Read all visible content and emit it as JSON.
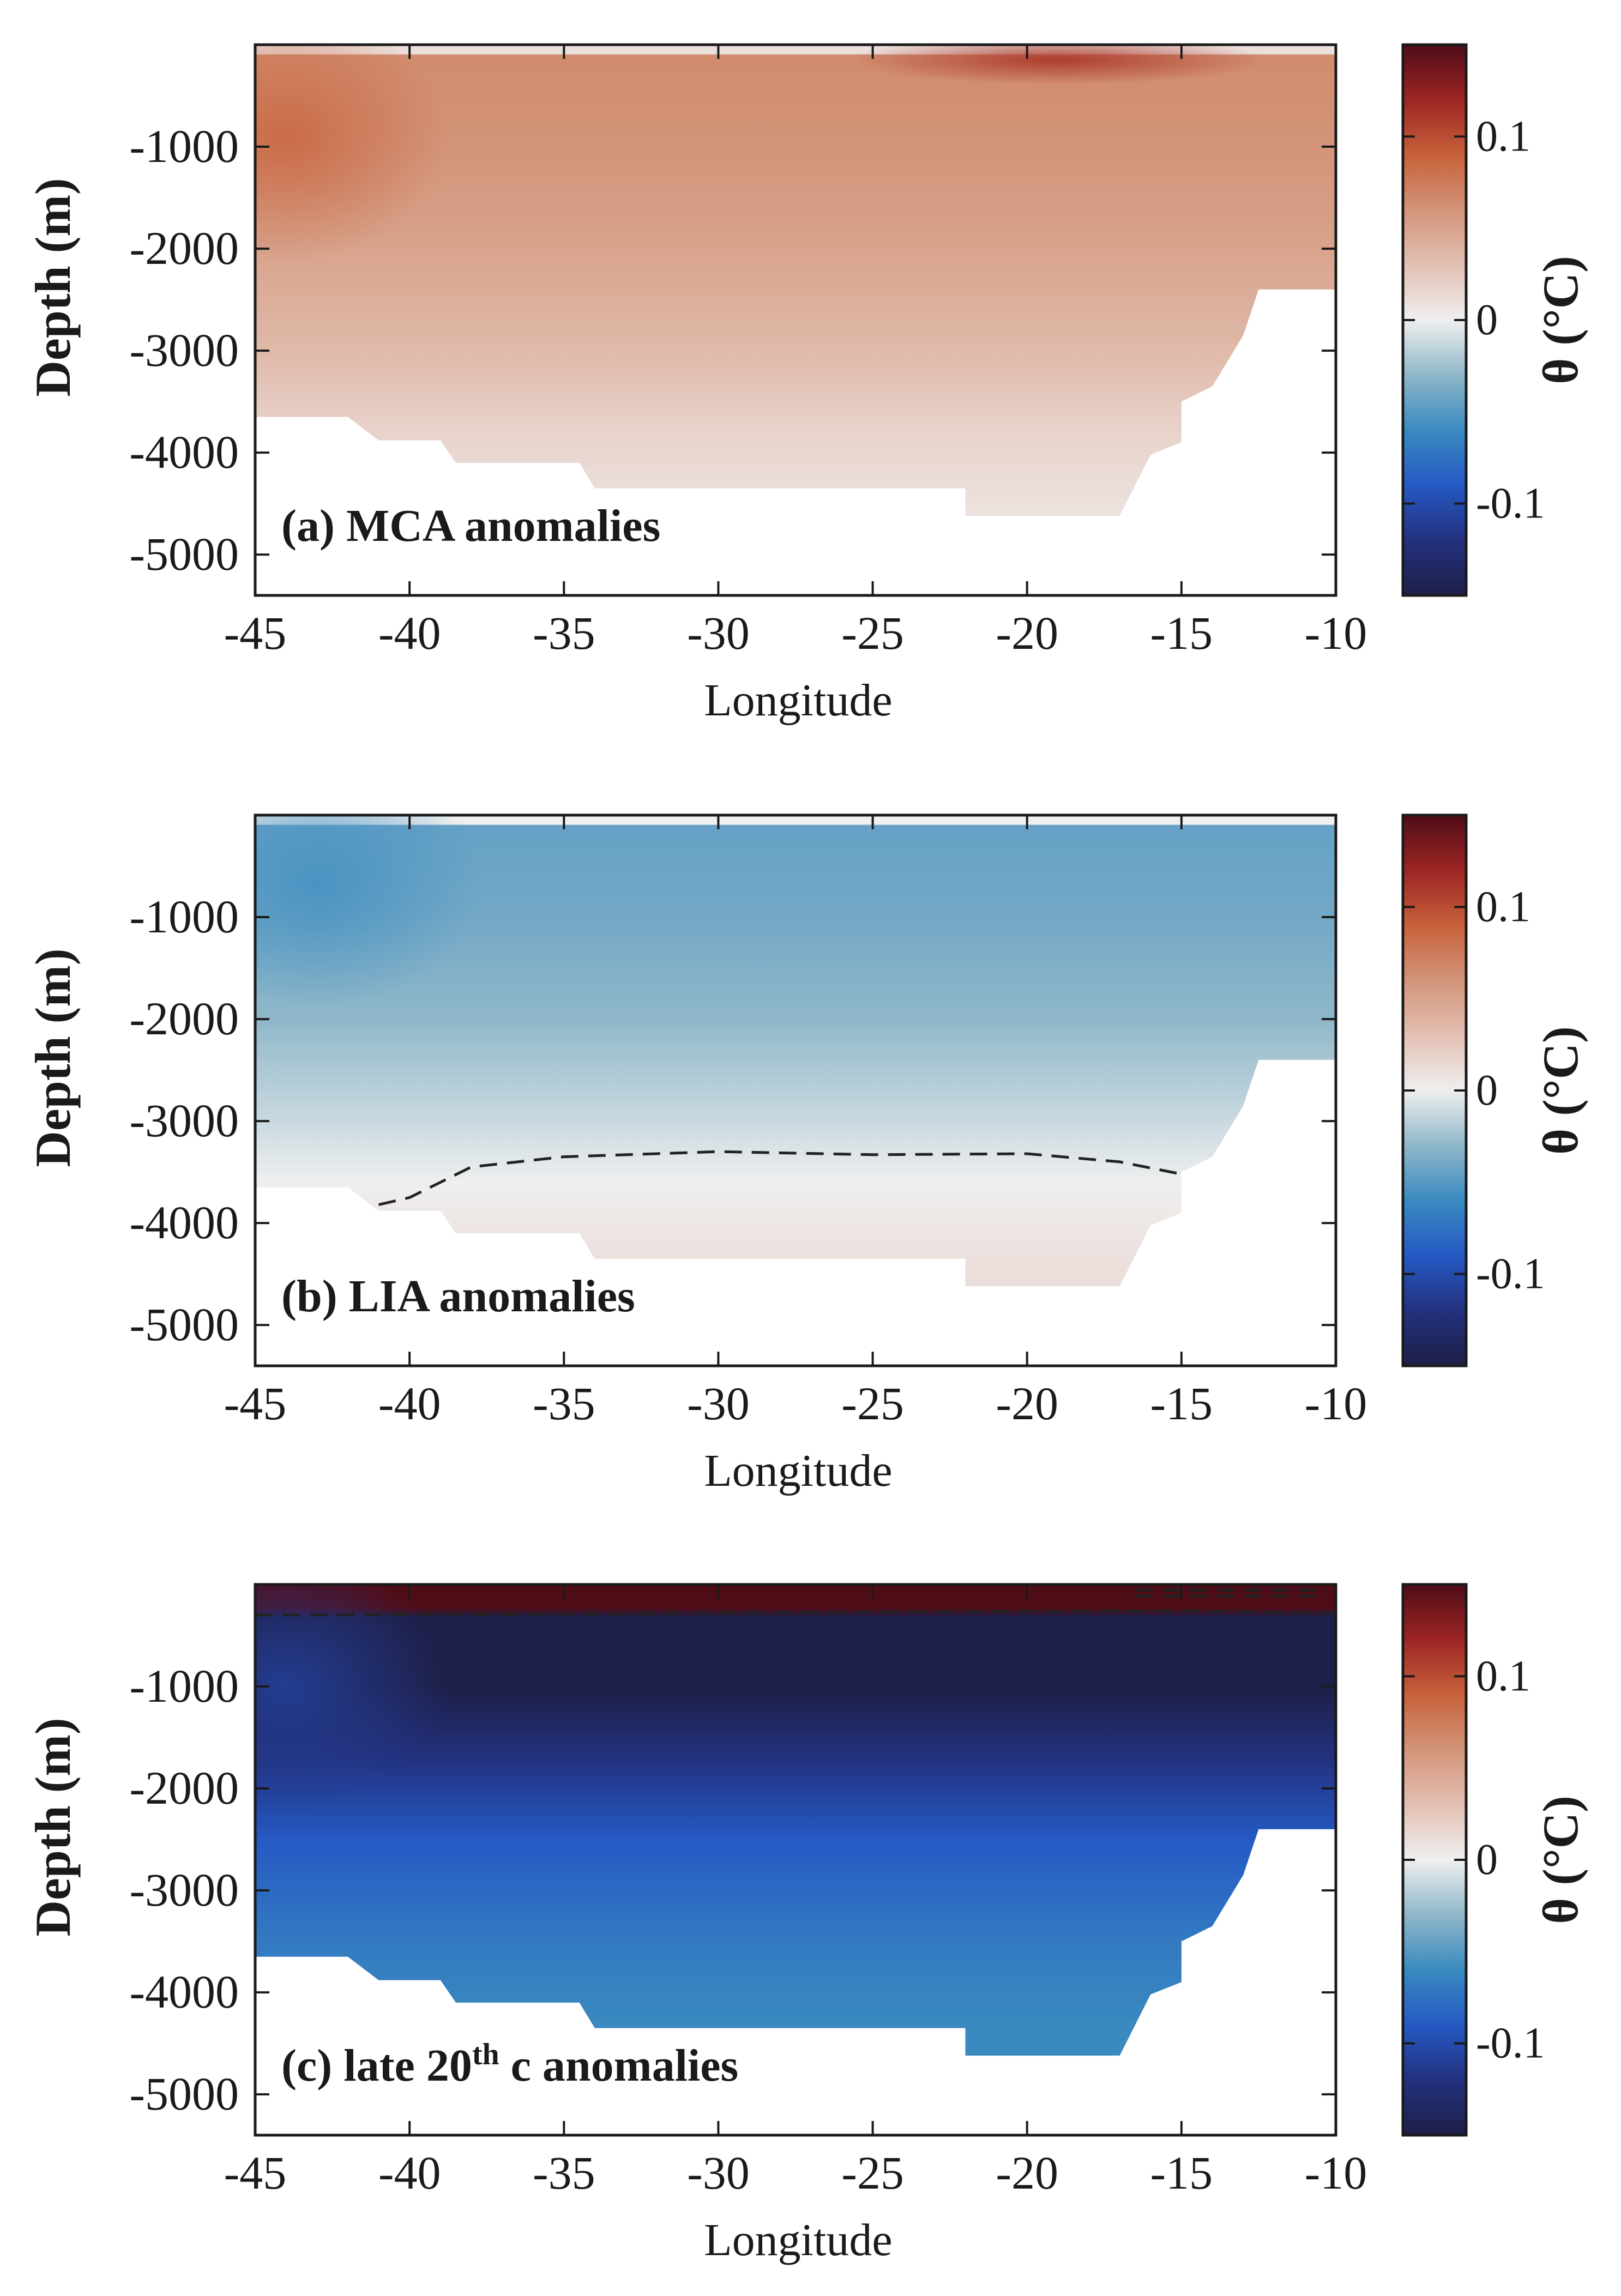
{
  "chart_data": [
    {
      "type": "contour",
      "panel_label": "(a) MCA anomalies",
      "panel_label_parts": [
        "(a) MCA anomalies"
      ],
      "xlabel": "Longitude",
      "ylabel": "Depth (m)",
      "xlim": [
        -45,
        -10
      ],
      "ylim": [
        -5400,
        0
      ],
      "xticks": [
        -45,
        -40,
        -35,
        -30,
        -25,
        -20,
        -15,
        -10
      ],
      "xtick_labels": [
        "-45",
        "-40",
        "-35",
        "-30",
        "-25",
        "-20",
        "-15",
        "-10"
      ],
      "yticks": [
        -1000,
        -2000,
        -3000,
        -4000,
        -5000
      ],
      "ytick_labels": [
        "-1000",
        "-2000",
        "-3000",
        "-4000",
        "-5000"
      ],
      "colorbar": {
        "label": "θ (°C)",
        "range": [
          -0.15,
          0.15
        ],
        "ticks": [
          0.1,
          0,
          -0.1
        ],
        "tick_labels": [
          "0.1",
          "0",
          "-0.1"
        ]
      },
      "field": {
        "surface_value": 0.01,
        "top_layer_value": 0.065,
        "deep_value": 0.01,
        "depth_profile": [
          {
            "depth": -100,
            "value": 0.065
          },
          {
            "depth": -1000,
            "value": 0.06
          },
          {
            "depth": -2000,
            "value": 0.05
          },
          {
            "depth": -3000,
            "value": 0.035
          },
          {
            "depth": -3800,
            "value": 0.018
          },
          {
            "depth": -4600,
            "value": 0.008
          }
        ],
        "highlights": [
          {
            "longitude": -44,
            "depth": -900,
            "value": 0.085
          },
          {
            "longitude": -19,
            "depth": -150,
            "value": 0.11
          }
        ]
      },
      "zero_contour": [],
      "bathymetry": [
        [
          -45,
          -3650
        ],
        [
          -42,
          -3650
        ],
        [
          -41,
          -3880
        ],
        [
          -39,
          -3880
        ],
        [
          -38.5,
          -4100
        ],
        [
          -34.5,
          -4100
        ],
        [
          -34,
          -4350
        ],
        [
          -22,
          -4350
        ],
        [
          -22,
          -4620
        ],
        [
          -17,
          -4620
        ],
        [
          -16,
          -4020
        ],
        [
          -15,
          -3900
        ],
        [
          -15,
          -3500
        ],
        [
          -14,
          -3350
        ],
        [
          -13,
          -2850
        ],
        [
          -12.5,
          -2400
        ],
        [
          -10,
          -2400
        ]
      ]
    },
    {
      "type": "contour",
      "panel_label": "(b) LIA anomalies",
      "panel_label_parts": [
        "(b) LIA anomalies"
      ],
      "xlabel": "Longitude",
      "ylabel": "Depth (m)",
      "xlim": [
        -45,
        -10
      ],
      "ylim": [
        -5400,
        0
      ],
      "xticks": [
        -45,
        -40,
        -35,
        -30,
        -25,
        -20,
        -15,
        -10
      ],
      "xtick_labels": [
        "-45",
        "-40",
        "-35",
        "-30",
        "-25",
        "-20",
        "-15",
        "-10"
      ],
      "yticks": [
        -1000,
        -2000,
        -3000,
        -4000,
        -5000
      ],
      "ytick_labels": [
        "-1000",
        "-2000",
        "-3000",
        "-4000",
        "-5000"
      ],
      "colorbar": {
        "label": "θ (°C)",
        "range": [
          -0.15,
          0.15
        ],
        "ticks": [
          0.1,
          0,
          -0.1
        ],
        "tick_labels": [
          "0.1",
          "0",
          "-0.1"
        ]
      },
      "field": {
        "surface_value": 0.0,
        "top_layer_value": -0.045,
        "deep_value": 0.01,
        "depth_profile": [
          {
            "depth": -100,
            "value": -0.045
          },
          {
            "depth": -1000,
            "value": -0.04
          },
          {
            "depth": -2000,
            "value": -0.03
          },
          {
            "depth": -3000,
            "value": -0.012
          },
          {
            "depth": -3600,
            "value": 0.0
          },
          {
            "depth": -4400,
            "value": 0.01
          }
        ],
        "highlights": [
          {
            "longitude": -43,
            "depth": -650,
            "value": -0.055
          }
        ]
      },
      "zero_contour": [
        [
          -41,
          -3820
        ],
        [
          -40,
          -3750
        ],
        [
          -38,
          -3450
        ],
        [
          -35,
          -3350
        ],
        [
          -30,
          -3300
        ],
        [
          -25,
          -3330
        ],
        [
          -20,
          -3320
        ],
        [
          -17,
          -3400
        ],
        [
          -15,
          -3520
        ]
      ],
      "bathymetry": [
        [
          -45,
          -3650
        ],
        [
          -42,
          -3650
        ],
        [
          -41,
          -3880
        ],
        [
          -39,
          -3880
        ],
        [
          -38.5,
          -4100
        ],
        [
          -34.5,
          -4100
        ],
        [
          -34,
          -4350
        ],
        [
          -22,
          -4350
        ],
        [
          -22,
          -4620
        ],
        [
          -17,
          -4620
        ],
        [
          -16,
          -4020
        ],
        [
          -15,
          -3900
        ],
        [
          -15,
          -3500
        ],
        [
          -14,
          -3350
        ],
        [
          -13,
          -2850
        ],
        [
          -12.5,
          -2400
        ],
        [
          -10,
          -2400
        ]
      ]
    },
    {
      "type": "contour",
      "panel_label": "(c) late 20th c anomalies",
      "panel_label_parts": [
        "(c) late 20",
        "th",
        " c anomalies"
      ],
      "xlabel": "Longitude",
      "ylabel": "Depth (m)",
      "xlim": [
        -45,
        -10
      ],
      "ylim": [
        -5400,
        0
      ],
      "xticks": [
        -45,
        -40,
        -35,
        -30,
        -25,
        -20,
        -15,
        -10
      ],
      "xtick_labels": [
        "-45",
        "-40",
        "-35",
        "-30",
        "-25",
        "-20",
        "-15",
        "-10"
      ],
      "yticks": [
        -1000,
        -2000,
        -3000,
        -4000,
        -5000
      ],
      "ytick_labels": [
        "-1000",
        "-2000",
        "-3000",
        "-4000",
        "-5000"
      ],
      "colorbar": {
        "label": "θ (°C)",
        "range": [
          -0.15,
          0.15
        ],
        "ticks": [
          0.1,
          0,
          -0.1
        ],
        "tick_labels": [
          "0.1",
          "0",
          "-0.1"
        ]
      },
      "field": {
        "surface_value": 0.15,
        "top_layer_value": -0.15,
        "deep_value": -0.06,
        "depth_profile": [
          {
            "depth": -400,
            "value": -0.15
          },
          {
            "depth": -1000,
            "value": -0.15
          },
          {
            "depth": -1700,
            "value": -0.12
          },
          {
            "depth": -2500,
            "value": -0.09
          },
          {
            "depth": -3500,
            "value": -0.07
          },
          {
            "depth": -4400,
            "value": -0.06
          }
        ],
        "highlights": [
          {
            "longitude": -44,
            "depth": -1000,
            "value": -0.11
          }
        ]
      },
      "zero_contour": [
        [
          -45,
          -300
        ],
        [
          -35,
          -290
        ],
        [
          -25,
          -270
        ],
        [
          -15,
          -260
        ],
        [
          -10,
          -280
        ]
      ],
      "bathymetry": [
        [
          -45,
          -3650
        ],
        [
          -42,
          -3650
        ],
        [
          -41,
          -3880
        ],
        [
          -39,
          -3880
        ],
        [
          -38.5,
          -4100
        ],
        [
          -34.5,
          -4100
        ],
        [
          -34,
          -4350
        ],
        [
          -22,
          -4350
        ],
        [
          -22,
          -4620
        ],
        [
          -17,
          -4620
        ],
        [
          -16,
          -4020
        ],
        [
          -15,
          -3900
        ],
        [
          -15,
          -3500
        ],
        [
          -14,
          -3350
        ],
        [
          -13,
          -2850
        ],
        [
          -12.5,
          -2400
        ],
        [
          -10,
          -2400
        ]
      ]
    }
  ],
  "colors": {
    "colormap": [
      {
        "value": -0.15,
        "color": "#1e1f48"
      },
      {
        "value": -0.12,
        "color": "#23317e"
      },
      {
        "value": -0.09,
        "color": "#2559c4"
      },
      {
        "value": -0.06,
        "color": "#3a8ac0"
      },
      {
        "value": -0.03,
        "color": "#8fb7c9"
      },
      {
        "value": 0.0,
        "color": "#efefef"
      },
      {
        "value": 0.03,
        "color": "#e3c0b3"
      },
      {
        "value": 0.06,
        "color": "#d39479"
      },
      {
        "value": 0.09,
        "color": "#c7613a"
      },
      {
        "value": 0.12,
        "color": "#9d2524"
      },
      {
        "value": 0.15,
        "color": "#4f0d18"
      }
    ],
    "axis": "#1a1a1a",
    "contour_line": "#222222",
    "land": "#ffffff"
  }
}
